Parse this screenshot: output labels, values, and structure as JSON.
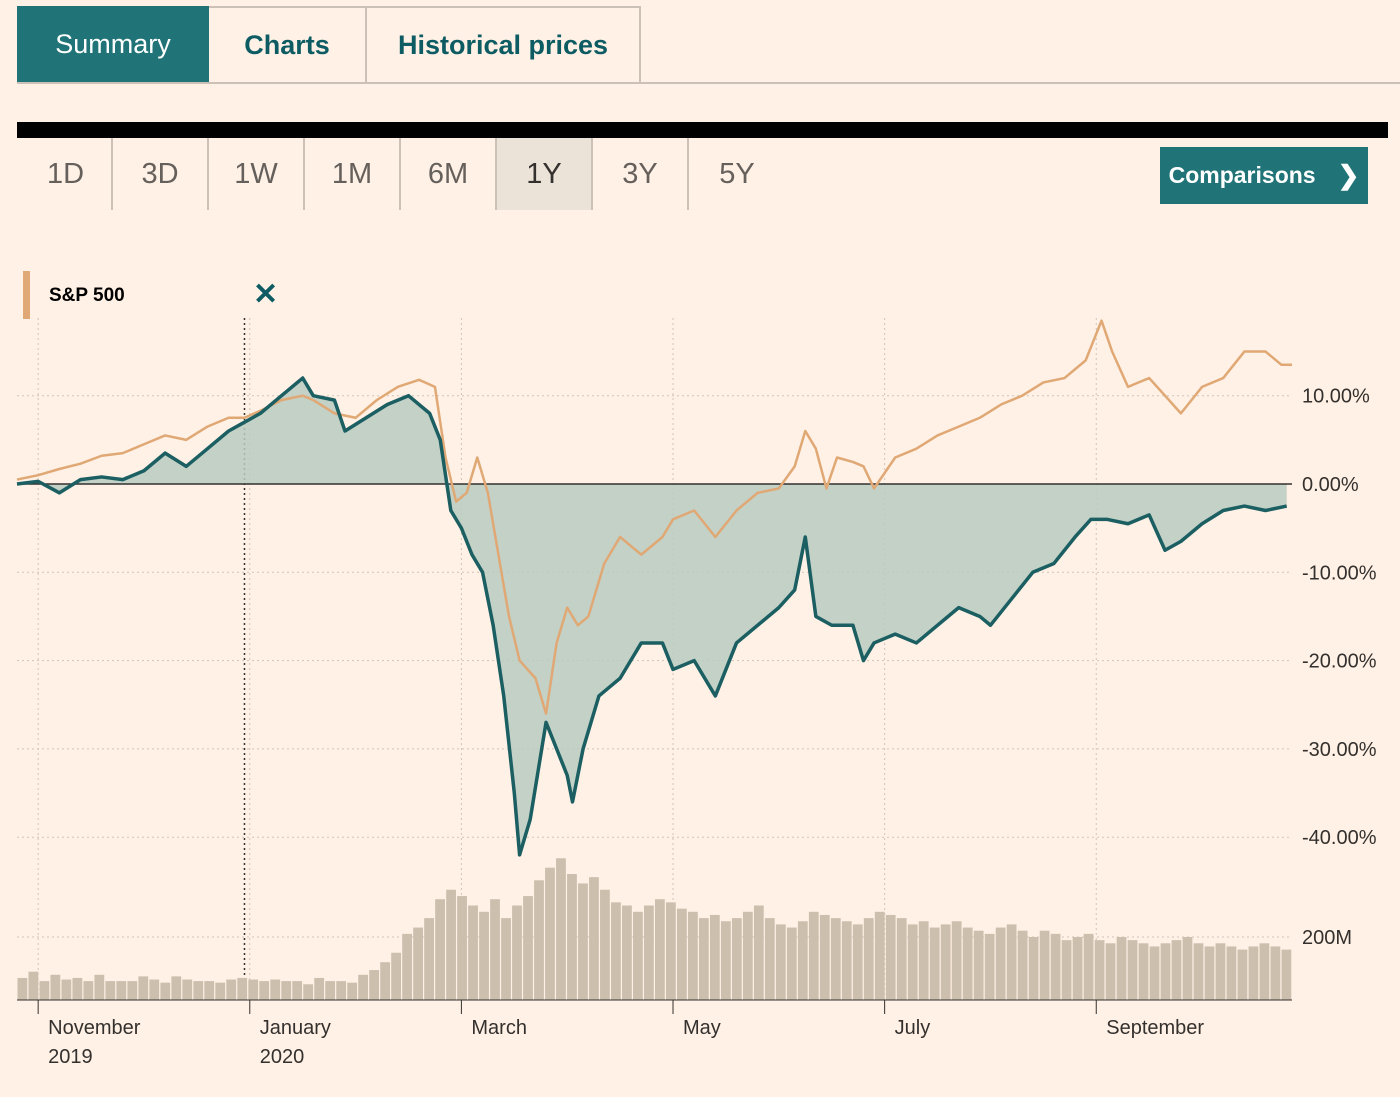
{
  "tabs": [
    "Summary",
    "Charts",
    "Historical prices"
  ],
  "ranges": [
    "1D",
    "3D",
    "1W",
    "1M",
    "6M",
    "1Y",
    "3Y",
    "5Y"
  ],
  "active_range": "1Y",
  "comparisons_label": "Comparisons",
  "legend": {
    "label": "S&P 500",
    "close_symbol": "✕",
    "color": "#e0a875"
  },
  "colors": {
    "accent": "#207377",
    "main_line": "#1b5f62",
    "comparison_line": "#e0a875",
    "area_fill": "#b9cbc1",
    "volume": "#cdbfae"
  },
  "chart_data": {
    "type": "line",
    "y_ticks": [
      {
        "value": 10,
        "label": "10.00%"
      },
      {
        "value": 0,
        "label": "0.00%"
      },
      {
        "value": -10,
        "label": "-10.00%"
      },
      {
        "value": -20,
        "label": "-20.00%"
      },
      {
        "value": -30,
        "label": "-30.00%"
      },
      {
        "value": -40,
        "label": "-40.00%"
      }
    ],
    "volume_tick": {
      "value": 200,
      "label": "200M"
    },
    "ylim": [
      -43,
      19
    ],
    "x_ticks": [
      {
        "month": 0,
        "label": "November",
        "label2": "2019"
      },
      {
        "month": 2,
        "label": "January",
        "label2": "2020"
      },
      {
        "month": 4,
        "label": "March",
        "label2": ""
      },
      {
        "month": 6,
        "label": "May",
        "label2": ""
      },
      {
        "month": 8,
        "label": "July",
        "label2": ""
      },
      {
        "month": 10,
        "label": "September",
        "label2": ""
      }
    ],
    "xlim": [
      -0.2,
      11.85
    ],
    "marker_month": 1.95,
    "series": [
      {
        "role": "main",
        "points": [
          [
            -0.2,
            0
          ],
          [
            0,
            0.3
          ],
          [
            0.2,
            -1
          ],
          [
            0.4,
            0.5
          ],
          [
            0.6,
            0.8
          ],
          [
            0.8,
            0.5
          ],
          [
            1,
            1.5
          ],
          [
            1.2,
            3.5
          ],
          [
            1.4,
            2
          ],
          [
            1.6,
            4
          ],
          [
            1.8,
            6
          ],
          [
            1.95,
            7
          ],
          [
            2.1,
            8
          ],
          [
            2.3,
            10
          ],
          [
            2.5,
            12
          ],
          [
            2.6,
            10
          ],
          [
            2.8,
            9.5
          ],
          [
            2.9,
            6
          ],
          [
            3.1,
            7.5
          ],
          [
            3.3,
            9
          ],
          [
            3.5,
            10
          ],
          [
            3.7,
            8
          ],
          [
            3.8,
            5
          ],
          [
            3.9,
            -3
          ],
          [
            4,
            -5
          ],
          [
            4.1,
            -8
          ],
          [
            4.2,
            -10
          ],
          [
            4.3,
            -16
          ],
          [
            4.4,
            -24
          ],
          [
            4.5,
            -35
          ],
          [
            4.55,
            -42
          ],
          [
            4.65,
            -38
          ],
          [
            4.8,
            -27
          ],
          [
            4.9,
            -30
          ],
          [
            5,
            -33
          ],
          [
            5.05,
            -36
          ],
          [
            5.15,
            -30
          ],
          [
            5.3,
            -24
          ],
          [
            5.4,
            -23
          ],
          [
            5.5,
            -22
          ],
          [
            5.7,
            -18
          ],
          [
            5.9,
            -18
          ],
          [
            6,
            -21
          ],
          [
            6.2,
            -20
          ],
          [
            6.4,
            -24
          ],
          [
            6.6,
            -18
          ],
          [
            6.8,
            -16
          ],
          [
            7,
            -14
          ],
          [
            7.15,
            -12
          ],
          [
            7.25,
            -6
          ],
          [
            7.35,
            -15
          ],
          [
            7.5,
            -16
          ],
          [
            7.7,
            -16
          ],
          [
            7.8,
            -20
          ],
          [
            7.9,
            -18
          ],
          [
            8.1,
            -17
          ],
          [
            8.3,
            -18
          ],
          [
            8.5,
            -16
          ],
          [
            8.7,
            -14
          ],
          [
            8.9,
            -15
          ],
          [
            9,
            -16
          ],
          [
            9.2,
            -13
          ],
          [
            9.4,
            -10
          ],
          [
            9.6,
            -9
          ],
          [
            9.8,
            -6
          ],
          [
            9.95,
            -4
          ],
          [
            10.1,
            -4
          ],
          [
            10.3,
            -4.5
          ],
          [
            10.5,
            -3.5
          ],
          [
            10.65,
            -7.5
          ],
          [
            10.8,
            -6.5
          ],
          [
            11,
            -4.5
          ],
          [
            11.2,
            -3
          ],
          [
            11.4,
            -2.5
          ],
          [
            11.6,
            -3
          ],
          [
            11.8,
            -2.5
          ]
        ]
      },
      {
        "role": "comparison",
        "name": "S&P 500",
        "points": [
          [
            -0.2,
            0.5
          ],
          [
            0,
            1
          ],
          [
            0.2,
            1.7
          ],
          [
            0.4,
            2.3
          ],
          [
            0.6,
            3.2
          ],
          [
            0.8,
            3.5
          ],
          [
            1,
            4.5
          ],
          [
            1.2,
            5.5
          ],
          [
            1.4,
            5
          ],
          [
            1.6,
            6.5
          ],
          [
            1.8,
            7.5
          ],
          [
            1.95,
            7.5
          ],
          [
            2.1,
            8.3
          ],
          [
            2.3,
            9.5
          ],
          [
            2.5,
            10
          ],
          [
            2.6,
            9.5
          ],
          [
            2.8,
            8
          ],
          [
            3,
            7.5
          ],
          [
            3.2,
            9.5
          ],
          [
            3.4,
            11
          ],
          [
            3.6,
            11.8
          ],
          [
            3.75,
            11
          ],
          [
            3.85,
            3
          ],
          [
            3.95,
            -2
          ],
          [
            4.05,
            -1
          ],
          [
            4.15,
            3
          ],
          [
            4.25,
            -1
          ],
          [
            4.35,
            -8
          ],
          [
            4.45,
            -15
          ],
          [
            4.55,
            -20
          ],
          [
            4.7,
            -22
          ],
          [
            4.8,
            -26
          ],
          [
            4.9,
            -18
          ],
          [
            5,
            -14
          ],
          [
            5.1,
            -16
          ],
          [
            5.2,
            -15
          ],
          [
            5.35,
            -9
          ],
          [
            5.5,
            -6
          ],
          [
            5.7,
            -8
          ],
          [
            5.9,
            -6
          ],
          [
            6,
            -4
          ],
          [
            6.2,
            -3
          ],
          [
            6.4,
            -6
          ],
          [
            6.6,
            -3
          ],
          [
            6.8,
            -1
          ],
          [
            7,
            -0.5
          ],
          [
            7.15,
            2
          ],
          [
            7.25,
            6
          ],
          [
            7.35,
            4
          ],
          [
            7.45,
            -0.5
          ],
          [
            7.55,
            3
          ],
          [
            7.7,
            2.5
          ],
          [
            7.8,
            2
          ],
          [
            7.9,
            -0.5
          ],
          [
            8.1,
            3
          ],
          [
            8.3,
            4
          ],
          [
            8.5,
            5.5
          ],
          [
            8.7,
            6.5
          ],
          [
            8.9,
            7.5
          ],
          [
            9.1,
            9
          ],
          [
            9.3,
            10
          ],
          [
            9.5,
            11.5
          ],
          [
            9.7,
            12
          ],
          [
            9.9,
            14
          ],
          [
            10.05,
            18.5
          ],
          [
            10.15,
            15
          ],
          [
            10.3,
            11
          ],
          [
            10.5,
            12
          ],
          [
            10.65,
            10
          ],
          [
            10.8,
            8
          ],
          [
            11,
            11
          ],
          [
            11.2,
            12
          ],
          [
            11.4,
            15
          ],
          [
            11.6,
            15
          ],
          [
            11.75,
            13.5
          ],
          [
            11.85,
            13.5
          ]
        ]
      }
    ],
    "volume_series": [
      70,
      90,
      60,
      80,
      65,
      70,
      60,
      80,
      60,
      60,
      60,
      75,
      65,
      55,
      75,
      65,
      60,
      60,
      55,
      65,
      70,
      65,
      60,
      65,
      60,
      60,
      50,
      70,
      60,
      60,
      55,
      80,
      95,
      120,
      150,
      210,
      230,
      260,
      320,
      350,
      330,
      300,
      280,
      320,
      260,
      300,
      330,
      380,
      420,
      450,
      400,
      370,
      390,
      350,
      310,
      300,
      280,
      300,
      320,
      310,
      290,
      280,
      260,
      270,
      250,
      260,
      280,
      300,
      260,
      240,
      230,
      250,
      280,
      270,
      260,
      250,
      240,
      260,
      280,
      270,
      260,
      240,
      250,
      230,
      240,
      250,
      230,
      220,
      210,
      230,
      240,
      220,
      200,
      220,
      210,
      190,
      200,
      210,
      190,
      180,
      200,
      190,
      180,
      170,
      180,
      190,
      200,
      180,
      170,
      180,
      170,
      160,
      170,
      180,
      170,
      160
    ]
  }
}
